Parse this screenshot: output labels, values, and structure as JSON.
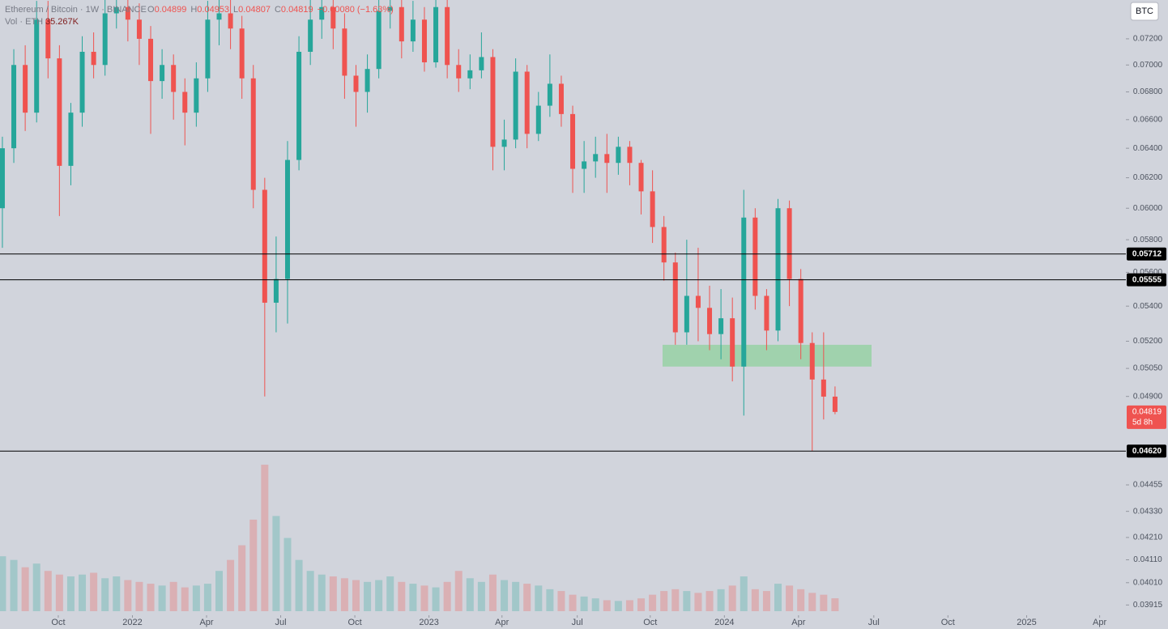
{
  "chart_data": {
    "type": "candlestick",
    "legend": {
      "symbol": "Ethereum / Bitcoin · 1W · BINANCE",
      "items": [
        {
          "label": "O",
          "value": "0.04899"
        },
        {
          "label": "H",
          "value": "0.04953"
        },
        {
          "label": "L",
          "value": "0.04807"
        },
        {
          "label": "C",
          "value": "0.04819"
        }
      ],
      "change": "−0.00080 (−1.63%)",
      "volume_title": "Vol · ETH",
      "volume_value": "35.267K"
    },
    "currency_button": "BTC",
    "log_scale": true,
    "up_color": "#26a69a",
    "down_color": "#ef5350",
    "ohlc": [
      [
        0.06,
        0.0648,
        0.0575,
        0.064
      ],
      [
        0.064,
        0.0712,
        0.063,
        0.07
      ],
      [
        0.07,
        0.0715,
        0.0652,
        0.0665
      ],
      [
        0.0665,
        0.075,
        0.0658,
        0.0735
      ],
      [
        0.0735,
        0.075,
        0.069,
        0.0705
      ],
      [
        0.0705,
        0.0715,
        0.0595,
        0.0628
      ],
      [
        0.0628,
        0.0672,
        0.0615,
        0.0665
      ],
      [
        0.0665,
        0.0722,
        0.0655,
        0.071
      ],
      [
        0.071,
        0.0725,
        0.069,
        0.07
      ],
      [
        0.07,
        0.0752,
        0.0692,
        0.074
      ],
      [
        0.074,
        0.0752,
        0.0728,
        0.0745
      ],
      [
        0.0745,
        0.0752,
        0.0718,
        0.0735
      ],
      [
        0.0735,
        0.0748,
        0.07,
        0.072
      ],
      [
        0.072,
        0.073,
        0.065,
        0.0688
      ],
      [
        0.0688,
        0.0712,
        0.0675,
        0.07
      ],
      [
        0.07,
        0.0708,
        0.066,
        0.068
      ],
      [
        0.068,
        0.069,
        0.0642,
        0.0665
      ],
      [
        0.0665,
        0.0702,
        0.0655,
        0.069
      ],
      [
        0.069,
        0.075,
        0.068,
        0.0735
      ],
      [
        0.0735,
        0.0752,
        0.0715,
        0.074
      ],
      [
        0.074,
        0.0752,
        0.0712,
        0.0728
      ],
      [
        0.0728,
        0.0738,
        0.0675,
        0.069
      ],
      [
        0.069,
        0.07,
        0.06,
        0.0612
      ],
      [
        0.0612,
        0.062,
        0.049,
        0.0542
      ],
      [
        0.0542,
        0.0582,
        0.0525,
        0.0556
      ],
      [
        0.0556,
        0.0645,
        0.053,
        0.0632
      ],
      [
        0.0632,
        0.0722,
        0.0625,
        0.071
      ],
      [
        0.071,
        0.0752,
        0.07,
        0.0735
      ],
      [
        0.0735,
        0.0752,
        0.072,
        0.0745
      ],
      [
        0.0745,
        0.0752,
        0.0712,
        0.0728
      ],
      [
        0.0728,
        0.074,
        0.0675,
        0.0692
      ],
      [
        0.0692,
        0.07,
        0.0655,
        0.068
      ],
      [
        0.068,
        0.0708,
        0.0665,
        0.0697
      ],
      [
        0.0697,
        0.0752,
        0.069,
        0.0742
      ],
      [
        0.0742,
        0.0752,
        0.0728,
        0.0745
      ],
      [
        0.0745,
        0.0752,
        0.0705,
        0.0718
      ],
      [
        0.0718,
        0.075,
        0.071,
        0.0735
      ],
      [
        0.0735,
        0.0745,
        0.0695,
        0.0702
      ],
      [
        0.0702,
        0.0752,
        0.0698,
        0.0745
      ],
      [
        0.0745,
        0.0752,
        0.069,
        0.07
      ],
      [
        0.07,
        0.0712,
        0.068,
        0.069
      ],
      [
        0.069,
        0.0708,
        0.0682,
        0.0696
      ],
      [
        0.0696,
        0.0725,
        0.069,
        0.0706
      ],
      [
        0.0706,
        0.0712,
        0.0625,
        0.0641
      ],
      [
        0.0641,
        0.066,
        0.0625,
        0.0646
      ],
      [
        0.0646,
        0.0705,
        0.064,
        0.0695
      ],
      [
        0.0695,
        0.07,
        0.064,
        0.065
      ],
      [
        0.065,
        0.068,
        0.0645,
        0.067
      ],
      [
        0.067,
        0.0708,
        0.0662,
        0.0686
      ],
      [
        0.0686,
        0.0692,
        0.0655,
        0.0664
      ],
      [
        0.0664,
        0.067,
        0.061,
        0.0626
      ],
      [
        0.0626,
        0.0645,
        0.061,
        0.0631
      ],
      [
        0.0631,
        0.0648,
        0.062,
        0.0636
      ],
      [
        0.0636,
        0.065,
        0.061,
        0.063
      ],
      [
        0.063,
        0.0648,
        0.0622,
        0.0641
      ],
      [
        0.0641,
        0.0645,
        0.0615,
        0.063
      ],
      [
        0.063,
        0.0632,
        0.0596,
        0.0611
      ],
      [
        0.0611,
        0.0625,
        0.0578,
        0.0588
      ],
      [
        0.0588,
        0.0595,
        0.0555,
        0.0566
      ],
      [
        0.0566,
        0.0572,
        0.0518,
        0.0525
      ],
      [
        0.0525,
        0.058,
        0.0518,
        0.0546
      ],
      [
        0.0546,
        0.0575,
        0.052,
        0.0539
      ],
      [
        0.0539,
        0.0552,
        0.0515,
        0.0524
      ],
      [
        0.0524,
        0.055,
        0.051,
        0.0533
      ],
      [
        0.0533,
        0.0545,
        0.0498,
        0.0506
      ],
      [
        0.0506,
        0.0612,
        0.048,
        0.0594
      ],
      [
        0.0594,
        0.06,
        0.0538,
        0.0546
      ],
      [
        0.0546,
        0.055,
        0.0515,
        0.0526
      ],
      [
        0.0526,
        0.0606,
        0.052,
        0.06
      ],
      [
        0.06,
        0.0605,
        0.054,
        0.0556
      ],
      [
        0.0556,
        0.0562,
        0.051,
        0.0519
      ],
      [
        0.0519,
        0.0525,
        0.0462,
        0.0499
      ],
      [
        0.0499,
        0.0525,
        0.0478,
        0.04899
      ],
      [
        0.04899,
        0.04953,
        0.04807,
        0.04819
      ]
    ],
    "volume": [
      150,
      140,
      120,
      130,
      110,
      100,
      95,
      100,
      105,
      90,
      95,
      85,
      80,
      75,
      70,
      80,
      65,
      70,
      75,
      110,
      140,
      180,
      250,
      400,
      260,
      200,
      140,
      110,
      100,
      95,
      90,
      85,
      80,
      85,
      95,
      80,
      75,
      70,
      65,
      80,
      110,
      90,
      80,
      100,
      85,
      80,
      75,
      70,
      60,
      55,
      45,
      40,
      35,
      30,
      28,
      30,
      35,
      45,
      55,
      60,
      55,
      50,
      55,
      60,
      70,
      95,
      60,
      55,
      75,
      70,
      60,
      50,
      45,
      35.267
    ],
    "vlim": [
      0,
      420
    ],
    "xlim": [
      -0.21,
      98.5
    ],
    "xticks": [
      {
        "value": 4.9,
        "label": "Oct"
      },
      {
        "value": 11.4,
        "label": "2022"
      },
      {
        "value": 17.9,
        "label": "Apr"
      },
      {
        "value": 24.4,
        "label": "Jul"
      },
      {
        "value": 30.9,
        "label": "Oct"
      },
      {
        "value": 37.4,
        "label": "2023"
      },
      {
        "value": 43.8,
        "label": "Apr"
      },
      {
        "value": 50.4,
        "label": "Jul"
      },
      {
        "value": 56.8,
        "label": "Oct"
      },
      {
        "value": 63.3,
        "label": "2024"
      },
      {
        "value": 69.8,
        "label": "Apr"
      },
      {
        "value": 76.4,
        "label": "Jul"
      },
      {
        "value": 82.9,
        "label": "Oct"
      },
      {
        "value": 89.8,
        "label": "2025"
      },
      {
        "value": 96.2,
        "label": "Apr"
      }
    ],
    "ylim": [
      0.03872,
      0.07507
    ],
    "yticks": [
      {
        "value": 0.072,
        "label": "0.07200"
      },
      {
        "value": 0.07,
        "label": "0.07000"
      },
      {
        "value": 0.068,
        "label": "0.06800"
      },
      {
        "value": 0.066,
        "label": "0.06600"
      },
      {
        "value": 0.064,
        "label": "0.06400"
      },
      {
        "value": 0.062,
        "label": "0.06200"
      },
      {
        "value": 0.06,
        "label": "0.06000"
      },
      {
        "value": 0.058,
        "label": "0.05800"
      },
      {
        "value": 0.056,
        "label": "0.05600"
      },
      {
        "value": 0.054,
        "label": "0.05400"
      },
      {
        "value": 0.052,
        "label": "0.05200"
      },
      {
        "value": 0.0505,
        "label": "0.05050"
      },
      {
        "value": 0.049,
        "label": "0.04900"
      },
      {
        "value": 0.04455,
        "label": "0.04455"
      },
      {
        "value": 0.0433,
        "label": "0.04330"
      },
      {
        "value": 0.0421,
        "label": "0.04210"
      },
      {
        "value": 0.0411,
        "label": "0.04110"
      },
      {
        "value": 0.0401,
        "label": "0.04010"
      },
      {
        "value": 0.03915,
        "label": "0.03915"
      }
    ],
    "levels": [
      {
        "value": 0.05712,
        "label": "0.05712"
      },
      {
        "value": 0.05555,
        "label": "0.05555"
      },
      {
        "value": 0.0462,
        "label": "0.04620"
      }
    ],
    "zone": {
      "low": 0.0506,
      "high": 0.0518,
      "color": "#8fd19e"
    },
    "last_price": {
      "value": 0.04819,
      "label": "0.04819",
      "countdown": "5d 8h"
    }
  }
}
